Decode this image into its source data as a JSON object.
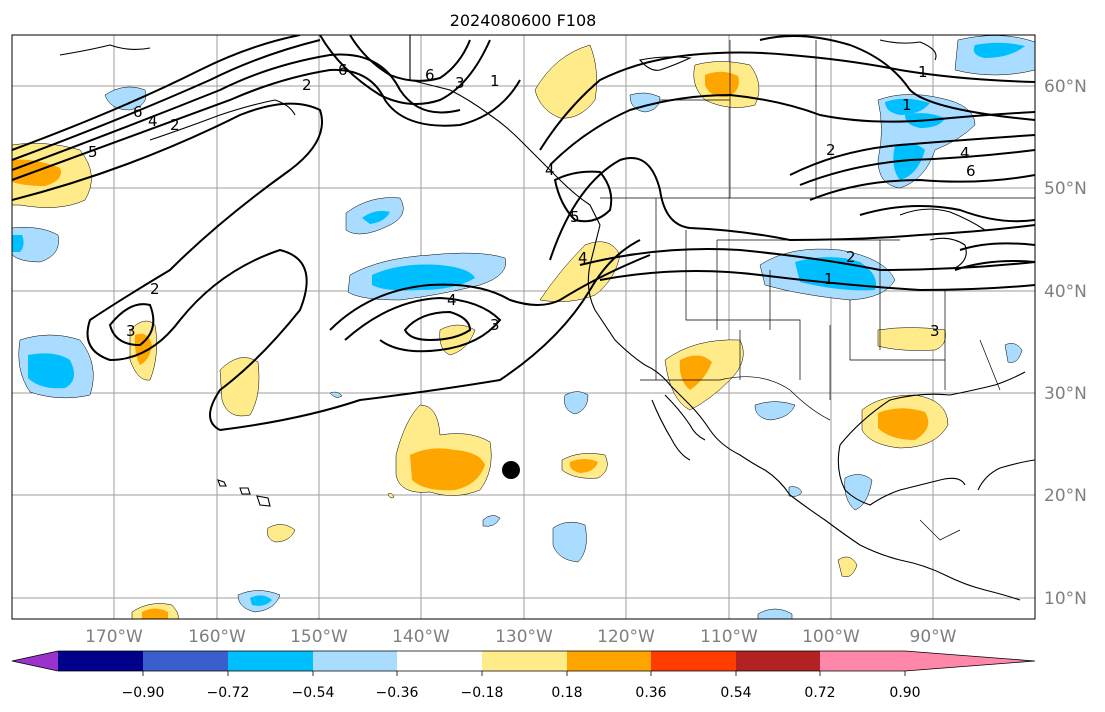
{
  "title": "2024080600 F108",
  "lat_labels": [
    "60°N",
    "50°N",
    "40°N",
    "30°N",
    "20°N",
    "10°N"
  ],
  "lon_labels": [
    "170°W",
    "160°W",
    "150°W",
    "140°W",
    "130°W",
    "120°W",
    "110°W",
    "100°W",
    "90°W"
  ],
  "contour_labels": [
    "6",
    "4",
    "2",
    "5",
    "3",
    "1",
    "6",
    "4",
    "6",
    "1",
    "2",
    "4",
    "3",
    "4",
    "2",
    "1",
    "2",
    "3",
    "1",
    "4",
    "6",
    "5",
    "3",
    "2"
  ],
  "colorbar": {
    "ticks": [
      "−0.90",
      "−0.72",
      "−0.54",
      "−0.36",
      "−0.18",
      "0.18",
      "0.36",
      "0.54",
      "0.72",
      "0.90"
    ],
    "colors": [
      "#9933cc",
      "#00008b",
      "#3a5fcd",
      "#00bfff",
      "#aadcff",
      "#ffffff",
      "#ffeb8a",
      "#ffa500",
      "#ff3c00",
      "#b22222",
      "#ff88aa"
    ]
  },
  "shading_colors": {
    "neg_light": "#aadcff",
    "neg_mid": "#00bfff",
    "pos_light": "#ffeb8a",
    "pos_mid": "#ffa500"
  },
  "marker": "storm-center-dot"
}
